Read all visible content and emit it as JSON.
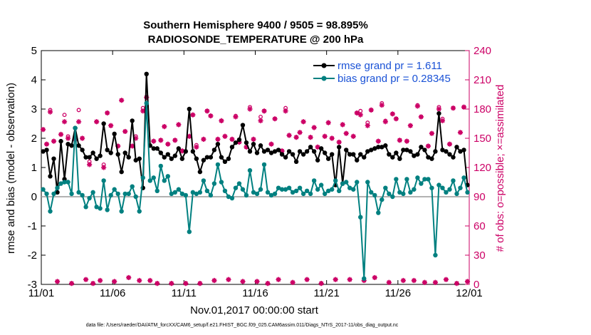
{
  "chart_data": {
    "type": "line",
    "title": "Southern Hemisphere 9400 / 9505 = 98.895%",
    "subtitle": "RADIOSONDE_TEMPERATURE @ 200 hPa",
    "xlabel": "Nov.01,2017 00:00:00 start",
    "ylabel_left": "rmse and bias (model - observation)",
    "ylabel_right": "# of obs: o=possible; ×=assimilated",
    "footer": "data file: /Users/raeder/DAI/ATM_forcXX/CAM6_setup/f.e21.FHIST_BGC.f09_025.CAM6assim.011/Diags_NTrS_2017-11/obs_diag_output.nc",
    "xlim": [
      0,
      30
    ],
    "ylim_left": [
      -3,
      5
    ],
    "ylim_right": [
      0,
      240
    ],
    "x_ticks": [
      0,
      5,
      10,
      15,
      20,
      25,
      30
    ],
    "x_tick_labels": [
      "11/01",
      "11/06",
      "11/11",
      "11/16",
      "11/21",
      "11/26",
      "12/01"
    ],
    "y_ticks_left": [
      -3,
      -2,
      -1,
      0,
      1,
      2,
      3,
      4,
      5
    ],
    "y_ticks_right": [
      0,
      30,
      60,
      90,
      120,
      150,
      180,
      210,
      240
    ],
    "colors": {
      "rmse": "#000000",
      "bias": "#008080",
      "obs": "#cc0066",
      "zero": "#999999"
    },
    "series": [
      {
        "name": "rmse grand pr = 1.611",
        "values": [
          1.55,
          1.6,
          0.7,
          1.3,
          0.15,
          1.9,
          0.6,
          1.8,
          1.75,
          2.35,
          1.75,
          1.6,
          1.35,
          1.35,
          1.5,
          1.3,
          1.4,
          2.5,
          1.6,
          1.5,
          2.15,
          1.45,
          0.85,
          1.5,
          1.35,
          2.6,
          1.25,
          1.3,
          0.3,
          4.2,
          1.75,
          1.65,
          1.65,
          1.5,
          1.35,
          1.45,
          1.3,
          1.4,
          1.65,
          1.3,
          1.55,
          3.0,
          1.55,
          1.3,
          0.85,
          1.25,
          1.35,
          1.35,
          1.6,
          1.8,
          1.35,
          1.2,
          1.3,
          1.7,
          1.85,
          1.95,
          2.45,
          1.85,
          1.55,
          1.8,
          1.5,
          1.75,
          1.55,
          1.6,
          1.5,
          1.55,
          1.6,
          1.45,
          1.35,
          1.55,
          1.45,
          1.2,
          1.55,
          1.45,
          1.55,
          1.7,
          1.55,
          1.25,
          1.65,
          1.5,
          1.3,
          1.45,
          0.4,
          1.7,
          0.45,
          1.6,
          1.45,
          1.45,
          1.25,
          1.45,
          1.35,
          1.55,
          1.6,
          1.65,
          1.7,
          1.7,
          1.75,
          1.45,
          1.35,
          1.5,
          1.3,
          1.6,
          1.6,
          1.55,
          1.4,
          1.45,
          1.7,
          1.6,
          1.35,
          1.3,
          1.55,
          2.85,
          1.6,
          1.55,
          1.45,
          1.35,
          1.7,
          1.55,
          1.6,
          0.4
        ]
      },
      {
        "name": "bias grand pr = 0.28345",
        "values": [
          0.25,
          0.1,
          -0.5,
          0.1,
          0.3,
          0.45,
          0.5,
          0.5,
          0.1,
          2.35,
          0.15,
          0.05,
          -0.35,
          -0.05,
          0.15,
          -0.35,
          -0.4,
          0.55,
          -0.45,
          0.05,
          0.25,
          0.1,
          -0.5,
          0.1,
          0.1,
          0.35,
          0.0,
          -0.5,
          0.65,
          3.2,
          0.55,
          0.65,
          0.2,
          1.05,
          0.55,
          0.7,
          0.1,
          0.15,
          0.25,
          0.1,
          0.05,
          -1.2,
          0.15,
          0.1,
          0.15,
          0.55,
          0.2,
          0.05,
          0.45,
          1.1,
          0.5,
          0.2,
          0.0,
          -0.05,
          0.3,
          0.45,
          0.25,
          0.05,
          0.9,
          0.15,
          0.1,
          0.25,
          1.1,
          0.15,
          0.05,
          0.1,
          0.3,
          0.25,
          0.25,
          0.3,
          0.15,
          0.2,
          0.3,
          0.1,
          0.2,
          0.1,
          0.55,
          0.25,
          0.4,
          0.1,
          0.2,
          0.25,
          0.55,
          0.2,
          0.45,
          0.5,
          0.3,
          0.25,
          0.5,
          -0.7,
          -2.8,
          0.5,
          0.15,
          0.05,
          -0.55,
          -0.1,
          0.3,
          0.1,
          0.0,
          0.6,
          0.15,
          0.1,
          0.6,
          0.15,
          0.25,
          0.65,
          0.45,
          0.6,
          0.6,
          0.3,
          -2.0,
          0.4,
          0.3,
          0.15,
          0.25,
          0.55,
          0.1,
          0.3,
          0.65,
          0.15
        ]
      }
    ],
    "obs_possible": [
      159,
      144,
      179,
      147,
      3,
      154,
      174,
      152,
      1,
      149,
      179,
      150,
      5,
      126,
      1,
      167,
      4,
      123,
      176,
      163,
      3,
      142,
      189,
      157,
      7,
      142,
      152,
      4,
      181,
      192,
      4,
      147,
      1,
      148,
      162,
      144,
      1,
      148,
      164,
      137,
      1,
      152,
      174,
      143,
      1,
      149,
      178,
      173,
      4,
      149,
      168,
      152,
      5,
      149,
      173,
      146,
      3,
      141,
      182,
      149,
      3,
      172,
      178,
      1,
      144,
      170,
      5,
      137,
      181,
      153,
      2,
      151,
      156,
      167,
      5,
      151,
      161,
      141,
      1,
      152,
      166,
      150,
      5,
      146,
      164,
      155,
      5,
      152,
      176,
      178,
      4,
      166,
      179,
      7,
      147,
      186,
      168,
      2,
      175,
      170,
      148,
      4,
      147,
      163,
      4,
      184,
      172,
      2,
      142,
      155,
      2,
      182,
      170,
      5,
      144,
      181,
      1,
      156,
      182,
      3
    ],
    "obs_assimilated": [
      159,
      144,
      177,
      147,
      3,
      154,
      167,
      150,
      1,
      149,
      167,
      150,
      5,
      123,
      1,
      167,
      4,
      120,
      176,
      163,
      3,
      142,
      189,
      157,
      7,
      142,
      150,
      4,
      178,
      192,
      4,
      147,
      1,
      148,
      162,
      144,
      1,
      148,
      164,
      137,
      1,
      152,
      174,
      141,
      1,
      149,
      178,
      173,
      4,
      149,
      168,
      152,
      5,
      149,
      172,
      146,
      3,
      141,
      180,
      149,
      3,
      168,
      178,
      1,
      144,
      170,
      5,
      137,
      178,
      153,
      2,
      151,
      156,
      167,
      5,
      151,
      161,
      141,
      1,
      152,
      166,
      150,
      5,
      146,
      164,
      155,
      5,
      152,
      176,
      174,
      4,
      163,
      179,
      7,
      147,
      184,
      167,
      2,
      175,
      170,
      148,
      4,
      147,
      163,
      4,
      183,
      172,
      2,
      142,
      155,
      2,
      180,
      168,
      5,
      144,
      181,
      1,
      156,
      182,
      3
    ]
  }
}
